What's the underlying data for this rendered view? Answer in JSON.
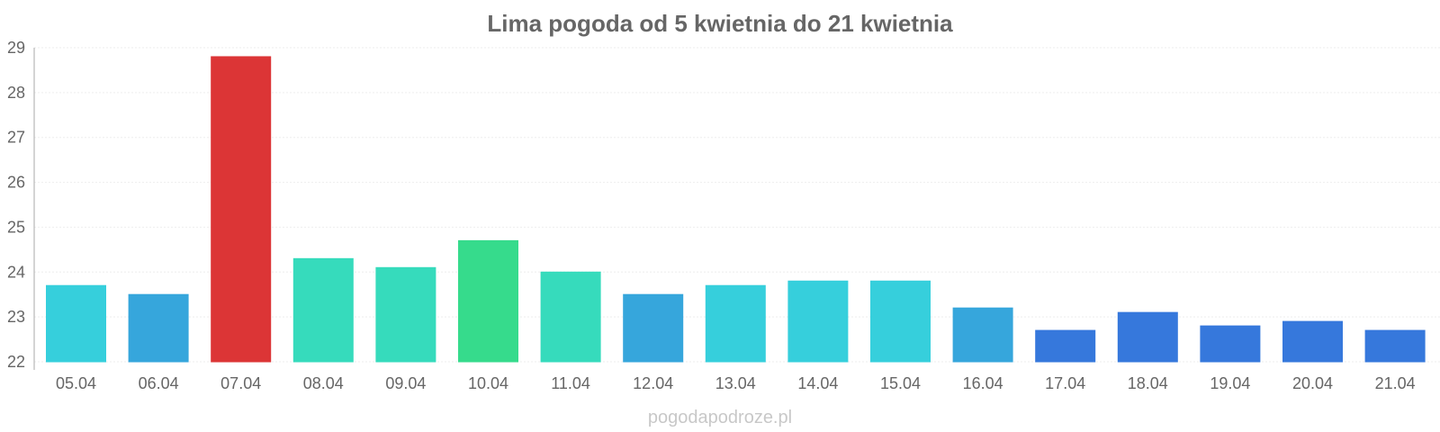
{
  "chart_data": {
    "type": "bar",
    "title": "Lima pogoda od 5 kwietnia do 21 kwietnia",
    "xlabel": "",
    "ylabel": "",
    "categories": [
      "05.04",
      "06.04",
      "07.04",
      "08.04",
      "09.04",
      "10.04",
      "11.04",
      "12.04",
      "13.04",
      "14.04",
      "15.04",
      "16.04",
      "17.04",
      "18.04",
      "19.04",
      "20.04",
      "21.04"
    ],
    "values": [
      23.7,
      23.5,
      28.8,
      24.3,
      24.1,
      24.7,
      24.0,
      23.5,
      23.7,
      23.8,
      23.8,
      23.2,
      22.7,
      23.1,
      22.8,
      22.9,
      22.7
    ],
    "colors": [
      "#36cfdc",
      "#36a6dc",
      "#dc3536",
      "#36dbbc",
      "#36dbbc",
      "#36db8c",
      "#36dbbc",
      "#36a6dc",
      "#36cfdc",
      "#36cfdc",
      "#36cfdc",
      "#36a6dc",
      "#3678dc",
      "#3678dc",
      "#3678dc",
      "#3678dc",
      "#3678dc"
    ],
    "ylim": [
      22,
      29
    ],
    "yticks": [
      22,
      23,
      24,
      25,
      26,
      27,
      28,
      29
    ],
    "grid": true,
    "legend": "none"
  },
  "watermark": "pogodapodroze.pl"
}
